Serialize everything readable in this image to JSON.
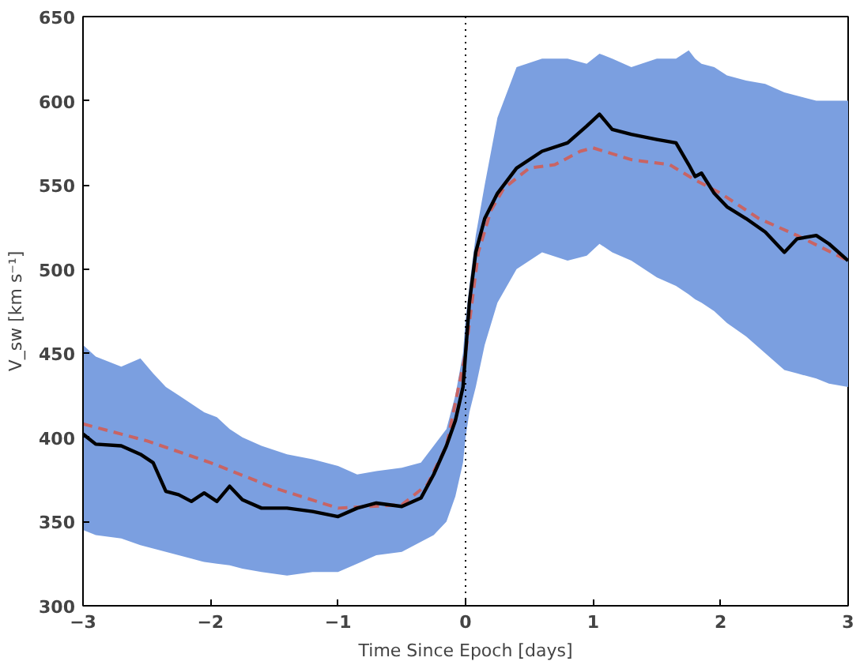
{
  "chart_data": {
    "type": "line",
    "xlabel": "Time Since Epoch [days]",
    "ylabel": "V_sw [km s⁻¹]",
    "xlim": [
      -3,
      3
    ],
    "ylim": [
      300,
      650
    ],
    "xticks": [
      {
        "value": -3,
        "label": "−3"
      },
      {
        "value": -2,
        "label": "−2"
      },
      {
        "value": -1,
        "label": "−1"
      },
      0,
      1,
      2,
      3
    ],
    "yticks": [
      300,
      350,
      400,
      450,
      500,
      550,
      600,
      650
    ],
    "grid": false,
    "marker": "none",
    "ref_lines": [
      {
        "axis": "x",
        "value": 0,
        "color": "#000000",
        "line_style": "dotted"
      }
    ],
    "series": [
      {
        "color": "#c86464",
        "line_style": "dashed",
        "x": [
          -3,
          -2.5,
          -2,
          -1.5,
          -1,
          -0.5,
          -0.3,
          -0.15,
          0,
          0.1,
          0.2,
          0.3,
          0.5,
          0.7,
          0.9,
          1.0,
          1.3,
          1.6,
          1.8,
          2.0,
          2.3,
          2.6,
          3.0
        ],
        "values": [
          408,
          398,
          385,
          370,
          358,
          360,
          372,
          395,
          450,
          510,
          535,
          548,
          560,
          562,
          570,
          572,
          565,
          562,
          553,
          545,
          530,
          520,
          505
        ]
      },
      {
        "color": "#000000",
        "line_style": "solid",
        "x": [
          -3,
          -2.9,
          -2.7,
          -2.55,
          -2.45,
          -2.35,
          -2.25,
          -2.15,
          -2.05,
          -1.95,
          -1.85,
          -1.75,
          -1.6,
          -1.4,
          -1.2,
          -1.0,
          -0.85,
          -0.7,
          -0.5,
          -0.35,
          -0.25,
          -0.15,
          -0.08,
          -0.02,
          0,
          0.03,
          0.08,
          0.15,
          0.25,
          0.4,
          0.6,
          0.8,
          0.95,
          1.05,
          1.15,
          1.3,
          1.5,
          1.65,
          1.75,
          1.8,
          1.85,
          1.95,
          2.05,
          2.2,
          2.35,
          2.5,
          2.6,
          2.75,
          2.85,
          3.0
        ],
        "values": [
          402,
          396,
          395,
          390,
          385,
          368,
          366,
          362,
          367,
          362,
          371,
          363,
          358,
          358,
          356,
          353,
          358,
          361,
          359,
          364,
          378,
          395,
          410,
          430,
          450,
          480,
          510,
          530,
          545,
          560,
          570,
          575,
          585,
          592,
          583,
          580,
          577,
          575,
          562,
          555,
          557,
          545,
          537,
          530,
          522,
          510,
          518,
          520,
          515,
          505
        ],
        "upper": [
          455,
          448,
          442,
          447,
          438,
          430,
          425,
          420,
          415,
          412,
          405,
          400,
          395,
          390,
          387,
          383,
          378,
          380,
          382,
          385,
          395,
          405,
          425,
          450,
          470,
          490,
          520,
          550,
          590,
          620,
          625,
          625,
          622,
          628,
          625,
          620,
          625,
          625,
          630,
          625,
          622,
          620,
          615,
          612,
          610,
          605,
          603,
          600,
          600,
          600
        ],
        "lower": [
          345,
          342,
          340,
          336,
          334,
          332,
          330,
          328,
          326,
          325,
          324,
          322,
          320,
          318,
          320,
          320,
          325,
          330,
          332,
          338,
          342,
          350,
          365,
          385,
          400,
          415,
          430,
          455,
          480,
          500,
          510,
          505,
          508,
          515,
          510,
          505,
          495,
          490,
          485,
          482,
          480,
          475,
          468,
          460,
          450,
          440,
          438,
          435,
          432,
          430
        ]
      }
    ]
  }
}
